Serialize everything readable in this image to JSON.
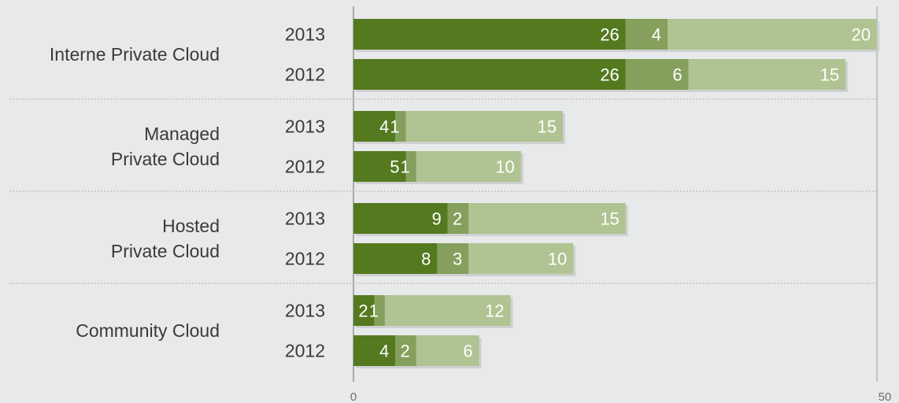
{
  "chart_data": {
    "type": "bar",
    "orientation": "horizontal",
    "stacked": true,
    "xlim": [
      0,
      50
    ],
    "x_ticks": [
      "0",
      "50"
    ],
    "grid": "none",
    "legend": "none",
    "series_colors": [
      "#54791f",
      "#84a05c",
      "#b0c392"
    ],
    "groups": [
      {
        "label": "Interne Private Cloud",
        "bars": [
          {
            "year": "2013",
            "values": [
              26,
              4,
              20
            ]
          },
          {
            "year": "2012",
            "values": [
              26,
              6,
              15
            ]
          }
        ]
      },
      {
        "label": "Managed\nPrivate Cloud",
        "bars": [
          {
            "year": "2013",
            "values": [
              4,
              1,
              15
            ]
          },
          {
            "year": "2012",
            "values": [
              5,
              1,
              10
            ]
          }
        ]
      },
      {
        "label": "Hosted\nPrivate Cloud",
        "bars": [
          {
            "year": "2013",
            "values": [
              9,
              2,
              15
            ]
          },
          {
            "year": "2012",
            "values": [
              8,
              3,
              10
            ]
          }
        ]
      },
      {
        "label": "Community Cloud",
        "bars": [
          {
            "year": "2013",
            "values": [
              2,
              1,
              12
            ]
          },
          {
            "year": "2012",
            "values": [
              4,
              2,
              6
            ]
          }
        ]
      }
    ]
  }
}
